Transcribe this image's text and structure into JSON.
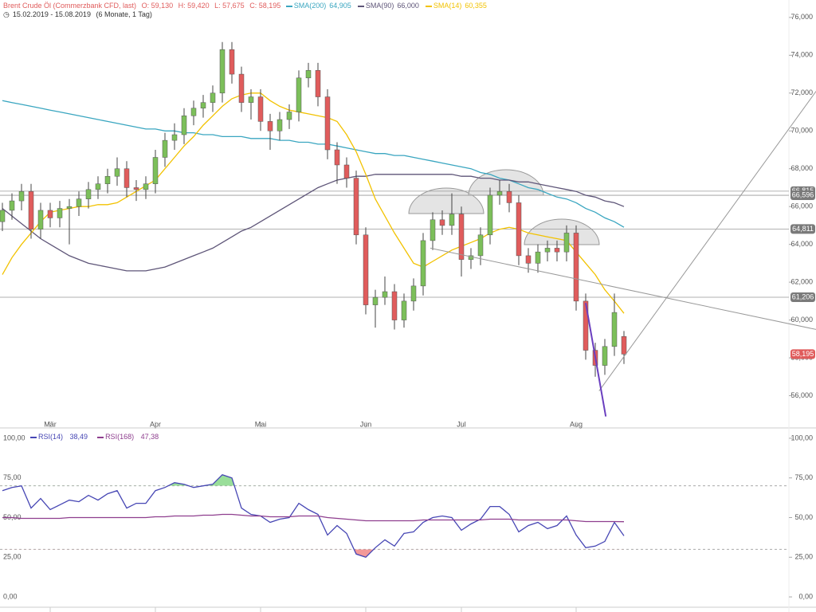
{
  "chart_data": [
    {
      "type": "candlestick",
      "title": "Brent Crude Öl (Commerzbank CFD, last)",
      "ohlc_labels": [
        "O: 59,130",
        "H: 59,420",
        "L: 57,675",
        "C: 58,195"
      ],
      "date_range": "15.02.2019 - 15.08.2019",
      "period": "(6 Monate, 1 Tag)",
      "categories": [
        null,
        null,
        null,
        null,
        null,
        "Mär",
        null,
        null,
        null,
        null,
        null,
        null,
        null,
        null,
        null,
        null,
        "Apr",
        null,
        null,
        null,
        null,
        null,
        null,
        null,
        null,
        null,
        null,
        "Mai",
        null,
        null,
        null,
        null,
        null,
        null,
        null,
        null,
        null,
        null,
        "Jun",
        null,
        null,
        null,
        null,
        null,
        null,
        null,
        null,
        null,
        "Jul",
        null,
        null,
        null,
        null,
        null,
        null,
        null,
        null,
        null,
        null,
        null,
        "Aug",
        null,
        null,
        null,
        null,
        null
      ],
      "open": [
        65.2,
        65.8,
        66.3,
        66.8,
        64.8,
        65.8,
        65.4,
        65.9,
        66.0,
        66.4,
        66.9,
        67.2,
        67.6,
        68.0,
        67.0,
        66.9,
        67.2,
        68.6,
        69.5,
        69.8,
        70.8,
        71.2,
        71.5,
        72.0,
        74.3,
        73.0,
        71.5,
        71.8,
        70.5,
        70.0,
        70.6,
        71.0,
        72.8,
        73.2,
        71.8,
        69.0,
        68.2,
        67.5,
        64.5,
        60.8,
        61.2,
        61.5,
        60.0,
        61.0,
        61.8,
        64.2,
        65.3,
        65.0,
        65.6,
        63.2,
        63.4,
        64.5,
        66.6,
        66.8,
        66.2,
        63.4,
        63.0,
        63.6,
        63.8,
        63.6,
        64.6,
        61.0,
        58.4,
        57.6,
        58.6,
        59.13
      ],
      "high": [
        66.2,
        66.7,
        67.2,
        67.2,
        66.2,
        66.2,
        66.3,
        66.4,
        66.8,
        67.3,
        67.6,
        68.0,
        68.6,
        68.4,
        67.4,
        67.6,
        69.0,
        69.9,
        70.4,
        71.2,
        71.6,
        71.9,
        72.4,
        74.7,
        74.7,
        73.4,
        72.2,
        72.2,
        70.9,
        71.0,
        71.4,
        73.2,
        73.6,
        73.6,
        72.2,
        69.4,
        68.6,
        67.9,
        64.9,
        61.6,
        62.3,
        61.9,
        61.4,
        62.2,
        64.6,
        65.7,
        65.8,
        66.7,
        66.0,
        63.8,
        64.9,
        67.0,
        67.4,
        67.2,
        66.6,
        63.8,
        64.0,
        64.2,
        64.2,
        65.0,
        65.0,
        61.4,
        58.8,
        59.0,
        61.4,
        59.42
      ],
      "low": [
        64.7,
        65.3,
        65.8,
        64.3,
        64.3,
        64.9,
        64.9,
        64.0,
        65.5,
        65.9,
        66.4,
        66.7,
        67.1,
        66.5,
        66.3,
        66.4,
        66.7,
        68.1,
        69.0,
        69.3,
        70.3,
        70.7,
        71.0,
        71.5,
        72.5,
        71.0,
        70.6,
        70.0,
        69.0,
        69.5,
        70.1,
        70.5,
        72.3,
        71.3,
        68.5,
        67.2,
        67.0,
        64.0,
        60.3,
        59.6,
        60.8,
        59.5,
        59.6,
        60.5,
        61.3,
        63.7,
        64.5,
        64.5,
        62.3,
        62.7,
        62.9,
        64.0,
        66.1,
        65.7,
        62.9,
        62.5,
        62.5,
        63.1,
        63.1,
        63.1,
        60.5,
        57.9,
        57.0,
        57.1,
        58.1,
        57.675
      ],
      "close": [
        65.8,
        66.3,
        66.8,
        64.8,
        65.8,
        65.4,
        65.9,
        66.0,
        66.4,
        66.9,
        67.2,
        67.6,
        68.0,
        67.0,
        66.9,
        67.2,
        68.6,
        69.5,
        69.8,
        70.8,
        71.2,
        71.5,
        72.0,
        74.3,
        73.0,
        71.5,
        71.8,
        70.5,
        70.0,
        70.6,
        71.0,
        72.8,
        73.2,
        71.8,
        69.0,
        68.2,
        67.5,
        64.5,
        60.8,
        61.2,
        61.5,
        60.0,
        61.0,
        61.8,
        64.2,
        65.3,
        65.0,
        65.6,
        63.2,
        63.4,
        64.5,
        66.6,
        66.8,
        66.2,
        63.4,
        63.0,
        63.6,
        63.8,
        63.6,
        64.6,
        61.0,
        58.4,
        57.6,
        58.6,
        60.4,
        58.195
      ],
      "up_color": "#7cbf5a",
      "down_color": "#e05c5c",
      "xlim": [
        -0.25,
        82.25
      ],
      "ylim": [
        54.8,
        76.5
      ],
      "yticks": [
        {
          "value": 56,
          "label": "56,000"
        },
        {
          "value": 58,
          "label": "58,000"
        },
        {
          "value": 60,
          "label": "60,000"
        },
        {
          "value": 62,
          "label": "62,000"
        },
        {
          "value": 64,
          "label": "64,000"
        },
        {
          "value": 66,
          "label": "66,000"
        },
        {
          "value": 68,
          "label": "68,000"
        },
        {
          "value": 70,
          "label": "70,000"
        },
        {
          "value": 72,
          "label": "72,000"
        },
        {
          "value": 74,
          "label": "74,000"
        },
        {
          "value": 76,
          "label": "76,000"
        }
      ],
      "series": [
        {
          "name": "SMA(200)",
          "color": "#3aa6c0",
          "last_label": "64,905",
          "values": [
            71.6,
            71.5,
            71.4,
            71.3,
            71.2,
            71.1,
            71.0,
            70.9,
            70.8,
            70.7,
            70.6,
            70.5,
            70.4,
            70.3,
            70.2,
            70.1,
            70.1,
            70.0,
            70.0,
            69.9,
            69.9,
            69.8,
            69.8,
            69.7,
            69.7,
            69.7,
            69.6,
            69.6,
            69.6,
            69.5,
            69.5,
            69.4,
            69.4,
            69.3,
            69.3,
            69.2,
            69.1,
            69.0,
            68.9,
            68.8,
            68.8,
            68.7,
            68.7,
            68.6,
            68.5,
            68.4,
            68.3,
            68.2,
            68.1,
            68.0,
            67.8,
            67.7,
            67.5,
            67.4,
            67.2,
            67.0,
            66.9,
            66.7,
            66.5,
            66.4,
            66.2,
            65.9,
            65.7,
            65.4,
            65.2,
            64.905
          ]
        },
        {
          "name": "SMA(90)",
          "color": "#5e5578",
          "last_label": "66,000",
          "values": [
            65.9,
            65.5,
            65.1,
            64.7,
            64.3,
            64.0,
            63.7,
            63.4,
            63.2,
            63.0,
            62.9,
            62.8,
            62.7,
            62.6,
            62.6,
            62.6,
            62.7,
            62.8,
            63.0,
            63.2,
            63.4,
            63.6,
            63.8,
            64.1,
            64.4,
            64.7,
            64.9,
            65.2,
            65.5,
            65.8,
            66.1,
            66.4,
            66.7,
            67.0,
            67.2,
            67.4,
            67.5,
            67.6,
            67.6,
            67.7,
            67.7,
            67.7,
            67.7,
            67.7,
            67.7,
            67.7,
            67.7,
            67.7,
            67.6,
            67.6,
            67.5,
            67.5,
            67.4,
            67.4,
            67.3,
            67.3,
            67.2,
            67.1,
            67.0,
            66.9,
            66.8,
            66.6,
            66.5,
            66.3,
            66.2,
            66.0
          ]
        },
        {
          "name": "SMA(14)",
          "color": "#f2c200",
          "last_label": "60,355",
          "values": [
            62.4,
            63.3,
            64.0,
            64.6,
            65.2,
            65.7,
            65.8,
            65.9,
            66.0,
            66.0,
            66.1,
            66.1,
            66.2,
            66.5,
            66.8,
            67.1,
            67.4,
            68.0,
            68.6,
            69.2,
            69.7,
            70.3,
            70.8,
            71.3,
            71.7,
            71.9,
            72.0,
            72.0,
            71.6,
            71.3,
            71.1,
            71.0,
            70.9,
            70.8,
            70.7,
            70.5,
            69.8,
            68.9,
            67.7,
            66.4,
            65.5,
            64.6,
            63.8,
            63.0,
            62.8,
            63.1,
            63.4,
            63.7,
            63.9,
            64.1,
            64.3,
            64.6,
            64.8,
            64.9,
            64.8,
            64.6,
            64.5,
            64.4,
            64.3,
            64.2,
            63.6,
            63.0,
            62.4,
            61.6,
            61.0,
            60.355
          ]
        }
      ],
      "hlines": [
        {
          "value": 66.815,
          "label": "66,815"
        },
        {
          "value": 66.596,
          "label": "66,596"
        },
        {
          "value": 64.811,
          "label": "64,811"
        },
        {
          "value": 61.206,
          "label": "61,206"
        }
      ],
      "last_label": {
        "value": 58.195,
        "label": "58,195"
      },
      "trendlines": [
        {
          "color": "#999999",
          "points": [
            [
              44.75,
              63.8
            ],
            [
              85.1,
              59.5
            ]
          ]
        },
        {
          "color": "#999999",
          "points": [
            [
              62.4,
              56.25
            ],
            [
              85.1,
              72.1
            ]
          ]
        },
        {
          "color": "#6a3fbf",
          "points": [
            [
              61.0,
              60.9
            ],
            [
              63.1,
              54.9
            ]
          ]
        }
      ]
    },
    {
      "type": "line",
      "xlim": [
        -0.25,
        82.25
      ],
      "ylim": [
        -5.5,
        105
      ],
      "yticks": [
        {
          "value": 0,
          "label": "0,00"
        },
        {
          "value": 25,
          "label": "25,00"
        },
        {
          "value": 50,
          "label": "50,00"
        },
        {
          "value": 75,
          "label": "75,00"
        },
        {
          "value": 100,
          "label": "100,00"
        }
      ],
      "levels": [
        70,
        30
      ],
      "series": [
        {
          "name": "RSI(14)",
          "color": "#4646b4",
          "last_label": "38,49",
          "values": [
            67,
            69,
            70,
            56,
            62,
            55,
            58,
            61,
            60,
            64,
            61,
            65,
            67,
            56,
            59,
            59,
            67,
            69,
            72,
            71,
            69,
            70,
            71,
            77,
            75,
            56,
            52,
            51,
            47,
            49,
            50,
            59,
            55,
            52,
            39,
            45,
            40,
            27,
            25,
            31,
            36,
            32,
            40,
            41,
            47,
            50,
            51,
            50,
            42,
            46,
            49,
            57,
            57,
            52,
            41,
            45,
            47,
            43,
            45,
            51,
            39,
            31,
            32,
            35,
            47,
            38.49
          ]
        },
        {
          "name": "RSI(168)",
          "color": "#8e3e8e",
          "last_label": "47,38",
          "values": [
            50,
            50,
            49.5,
            49.5,
            49.5,
            49.5,
            49.5,
            50,
            50,
            50,
            50,
            50,
            50,
            50,
            50,
            50,
            50.5,
            50.5,
            51,
            51,
            51,
            51.5,
            51.5,
            52,
            52,
            51.5,
            51,
            51,
            50.5,
            50.5,
            50.5,
            51,
            51,
            51,
            50,
            49.5,
            49,
            48.5,
            48,
            48,
            48,
            48,
            48,
            48,
            48.5,
            48.5,
            48.5,
            48.5,
            48.5,
            48.5,
            48.5,
            49,
            49,
            49,
            48.5,
            48.5,
            48.5,
            48.5,
            48.5,
            48.5,
            48,
            47.5,
            47.5,
            47.5,
            47.5,
            47.38
          ]
        }
      ]
    }
  ]
}
